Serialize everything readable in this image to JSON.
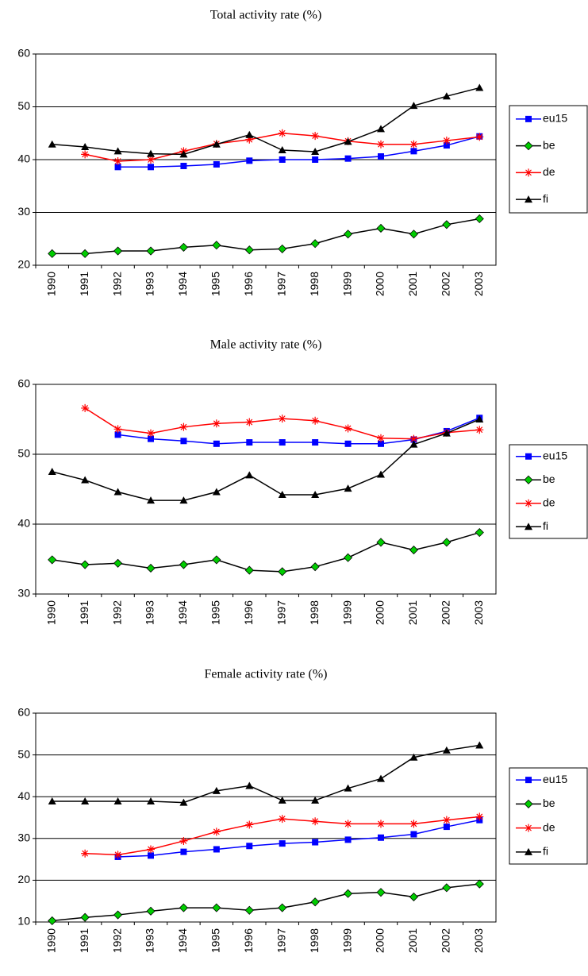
{
  "chart_data": [
    {
      "type": "line",
      "title": "Total activity rate (%)",
      "categories": [
        "1990",
        "1991",
        "1992",
        "1993",
        "1994",
        "1995",
        "1996",
        "1997",
        "1998",
        "1999",
        "2000",
        "2001",
        "2002",
        "2003"
      ],
      "ylim": [
        20,
        60
      ],
      "yticks": [
        20,
        30,
        40,
        50,
        60
      ],
      "grid": true,
      "legend": "right",
      "series": [
        {
          "name": "eu15",
          "color": "#0000ff",
          "marker": "square",
          "marker_color": "#0000ff",
          "values": [
            null,
            null,
            38.6,
            38.6,
            38.8,
            39.1,
            39.8,
            40,
            40,
            40.2,
            40.6,
            41.6,
            42.7,
            44.4
          ]
        },
        {
          "name": "be",
          "color": "#000000",
          "marker": "diamond",
          "marker_color": "#00cc00",
          "values": [
            22.2,
            22.2,
            22.7,
            22.7,
            23.4,
            23.8,
            22.9,
            23.1,
            24.1,
            25.9,
            27,
            25.9,
            27.7,
            28.8
          ]
        },
        {
          "name": "de",
          "color": "#ff0000",
          "marker": "asterisk",
          "marker_color": "#ff0000",
          "values": [
            null,
            41,
            39.7,
            40,
            41.6,
            43,
            43.8,
            45,
            44.5,
            43.5,
            42.9,
            42.9,
            43.6,
            44.3
          ]
        },
        {
          "name": "fi",
          "color": "#000000",
          "marker": "triangle",
          "marker_color": "#000000",
          "values": [
            42.9,
            42.4,
            41.6,
            41.1,
            41,
            42.9,
            44.7,
            41.8,
            41.5,
            43.4,
            45.8,
            50.2,
            52,
            53.6
          ]
        }
      ]
    },
    {
      "type": "line",
      "title": "Male activity rate (%)",
      "categories": [
        "1990",
        "1991",
        "1992",
        "1993",
        "1994",
        "1995",
        "1996",
        "1997",
        "1998",
        "1999",
        "2000",
        "2001",
        "2002",
        "2003"
      ],
      "ylim": [
        30,
        60
      ],
      "yticks": [
        30,
        40,
        50,
        60
      ],
      "grid": true,
      "legend": "right",
      "series": [
        {
          "name": "eu15",
          "color": "#0000ff",
          "marker": "square",
          "marker_color": "#0000ff",
          "values": [
            null,
            null,
            52.8,
            52.2,
            51.9,
            51.5,
            51.7,
            51.7,
            51.7,
            51.5,
            51.5,
            52.1,
            53.3,
            55.2
          ]
        },
        {
          "name": "be",
          "color": "#000000",
          "marker": "diamond",
          "marker_color": "#00cc00",
          "values": [
            34.9,
            34.2,
            34.4,
            33.7,
            34.2,
            34.9,
            33.4,
            33.2,
            33.9,
            35.2,
            37.4,
            36.3,
            37.4,
            38.8
          ]
        },
        {
          "name": "de",
          "color": "#ff0000",
          "marker": "asterisk",
          "marker_color": "#ff0000",
          "values": [
            null,
            56.6,
            53.6,
            53,
            53.9,
            54.4,
            54.6,
            55.1,
            54.8,
            53.7,
            52.3,
            52.2,
            53.1,
            53.5
          ]
        },
        {
          "name": "fi",
          "color": "#000000",
          "marker": "triangle",
          "marker_color": "#000000",
          "values": [
            47.5,
            46.3,
            44.6,
            43.4,
            43.4,
            44.6,
            47,
            44.2,
            44.2,
            45.1,
            47.1,
            51.4,
            53,
            55
          ]
        }
      ]
    },
    {
      "type": "line",
      "title": "Female activity rate (%)",
      "categories": [
        "1990",
        "1991",
        "1992",
        "1993",
        "1994",
        "1995",
        "1996",
        "1997",
        "1998",
        "1999",
        "2000",
        "2001",
        "2002",
        "2003"
      ],
      "ylim": [
        10,
        60
      ],
      "yticks": [
        10,
        20,
        30,
        40,
        50,
        60
      ],
      "grid": true,
      "legend": "right",
      "series": [
        {
          "name": "eu15",
          "color": "#0000ff",
          "marker": "square",
          "marker_color": "#0000ff",
          "values": [
            null,
            null,
            25.6,
            25.9,
            26.8,
            27.4,
            28.2,
            28.8,
            29.1,
            29.7,
            30.2,
            31,
            32.8,
            34.4
          ]
        },
        {
          "name": "be",
          "color": "#000000",
          "marker": "diamond",
          "marker_color": "#00cc00",
          "values": [
            10.3,
            11.1,
            11.7,
            12.6,
            13.4,
            13.4,
            12.8,
            13.4,
            14.8,
            16.8,
            17.1,
            16,
            18.2,
            19.1
          ]
        },
        {
          "name": "de",
          "color": "#ff0000",
          "marker": "asterisk",
          "marker_color": "#ff0000",
          "values": [
            null,
            26.4,
            26.1,
            27.4,
            29.4,
            31.6,
            33.3,
            34.7,
            34.1,
            33.5,
            33.5,
            33.5,
            34.4,
            35.2
          ]
        },
        {
          "name": "fi",
          "color": "#000000",
          "marker": "triangle",
          "marker_color": "#000000",
          "values": [
            38.9,
            38.9,
            38.9,
            38.9,
            38.6,
            41.4,
            42.6,
            39.1,
            39.1,
            42,
            44.3,
            49.4,
            51.1,
            52.3
          ]
        }
      ]
    }
  ]
}
